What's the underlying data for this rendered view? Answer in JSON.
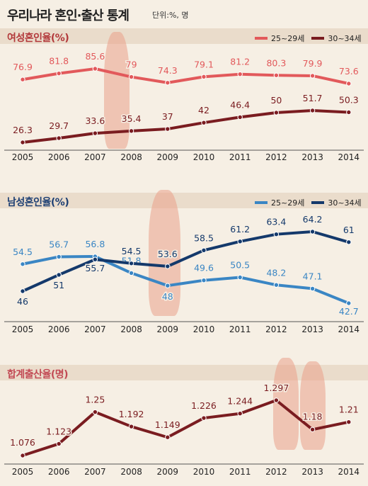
{
  "header": {
    "title": "우리나라 혼인·출산 통계",
    "unit": "단위:%, 명"
  },
  "colors": {
    "background": "#f6efe4",
    "header_band": "#eadccb",
    "female_title": "#b2383a",
    "male_title": "#1d3f73",
    "birth_title": "#c24a54",
    "pink_series": "#e2595b",
    "maroon_series": "#7a1c20",
    "lightblue_series": "#3a86c4",
    "navy_series": "#14396b",
    "figure": "#e9a08a"
  },
  "chart_data": [
    {
      "type": "line",
      "title": "여성혼인율(%)",
      "x": [
        "2005",
        "2006",
        "2007",
        "2008",
        "2009",
        "2010",
        "2011",
        "2012",
        "2013",
        "2014"
      ],
      "series": [
        {
          "name": "25~29세",
          "color": "#e2595b",
          "values": [
            76.9,
            81.8,
            85.6,
            79,
            74.3,
            79.1,
            81.2,
            80.3,
            79.9,
            73.6
          ]
        },
        {
          "name": "30~34세",
          "color": "#7a1c20",
          "values": [
            26.3,
            29.7,
            33.6,
            35.4,
            37,
            42,
            46.4,
            50,
            51.7,
            50.3
          ]
        }
      ],
      "value_labels": [
        [
          "76.9",
          "81.8",
          "85.6",
          "79",
          "74.3",
          "79.1",
          "81.2",
          "80.3",
          "79.9",
          "73.6"
        ],
        [
          "26.3",
          "29.7",
          "33.6",
          "35.4",
          "37",
          "42",
          "46.4",
          "50",
          "51.7",
          "50.3"
        ]
      ],
      "legend_placement": "top-right",
      "grid": false
    },
    {
      "type": "line",
      "title": "남성혼인율(%)",
      "x": [
        "2005",
        "2006",
        "2007",
        "2008",
        "2009",
        "2010",
        "2011",
        "2012",
        "2013",
        "2014"
      ],
      "series": [
        {
          "name": "25~29세",
          "color": "#3a86c4",
          "values": [
            54.5,
            56.7,
            56.8,
            51.8,
            48,
            49.6,
            50.5,
            48.2,
            47.1,
            42.7
          ]
        },
        {
          "name": "30~34세",
          "color": "#14396b",
          "values": [
            46,
            51,
            55.7,
            54.5,
            53.6,
            58.5,
            61.2,
            63.4,
            64.2,
            61
          ]
        }
      ],
      "value_labels": [
        [
          "54.5",
          "56.7",
          "56.8",
          "51.8",
          "48",
          "49.6",
          "50.5",
          "48.2",
          "47.1",
          "42.7"
        ],
        [
          "46",
          "51",
          "55.7",
          "54.5",
          "53.6",
          "58.5",
          "61.2",
          "63.4",
          "64.2",
          "61"
        ]
      ],
      "legend_placement": "top-right",
      "grid": false
    },
    {
      "type": "line",
      "title": "합계출산율(명)",
      "x": [
        "2005",
        "2006",
        "2007",
        "2008",
        "2009",
        "2010",
        "2011",
        "2012",
        "2013",
        "2014"
      ],
      "series": [
        {
          "color": "#7a1c20",
          "values": [
            1.076,
            1.123,
            1.25,
            1.192,
            1.149,
            1.226,
            1.244,
            1.297,
            1.18,
            1.21
          ]
        }
      ],
      "value_labels": [
        [
          "1.076",
          "1.123",
          "1.25",
          "1.192",
          "1.149",
          "1.226",
          "1.244",
          "1.297",
          "1.18",
          "1.21"
        ]
      ],
      "legend_placement": "none",
      "grid": false
    }
  ]
}
